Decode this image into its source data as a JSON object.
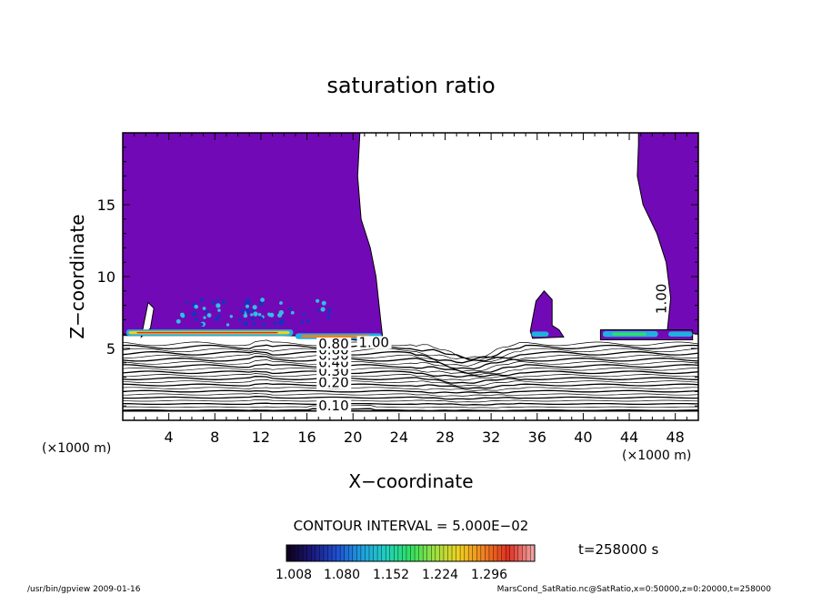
{
  "chart_data": {
    "type": "heatmap",
    "title": "saturation ratio",
    "xlabel": "X−coordinate",
    "ylabel": "Z−coordinate",
    "x_unit_left": "(×1000 m)",
    "x_unit_right": "(×1000 m)",
    "xlim": [
      0,
      50
    ],
    "ylim": [
      0,
      20
    ],
    "x_ticks": [
      4,
      8,
      12,
      16,
      20,
      24,
      28,
      32,
      36,
      40,
      44,
      48
    ],
    "y_ticks": [
      5,
      10,
      15
    ],
    "contour_labels": [
      {
        "text": "0.10",
        "x": 17,
        "y": 0.7
      },
      {
        "text": "0.20",
        "x": 17,
        "y": 2.3
      },
      {
        "text": "0.30",
        "x": 17,
        "y": 3.1
      },
      {
        "text": "0.40",
        "x": 17,
        "y": 3.7
      },
      {
        "text": "0.50",
        "x": 17,
        "y": 4.2
      },
      {
        "text": "0.60",
        "x": 17,
        "y": 4.6
      },
      {
        "text": "0.80",
        "x": 17,
        "y": 5.0
      },
      {
        "text": "1.00",
        "x": 20.5,
        "y": 5.1
      },
      {
        "text": "1.00",
        "x": 47.2,
        "y": 7.4
      }
    ],
    "contour_interval": "CONTOUR INTERVAL = 5.000E−02",
    "colorbar": {
      "ticks": [
        "1.008",
        "1.080",
        "1.152",
        "1.224",
        "1.296"
      ],
      "colors": [
        "#100020",
        "#1a1a80",
        "#1f4fd0",
        "#1fa0e0",
        "#20d0c0",
        "#30e060",
        "#a0e040",
        "#f0d020",
        "#f08020",
        "#e03020",
        "#f0a0a0"
      ]
    },
    "time_label": "t=258000 s",
    "fill_color": "#7209b7"
  },
  "footer": {
    "left": "/usr/bin/gpview   2009-01-16",
    "right": "MarsCond_SatRatio.nc@SatRatio,x=0:50000,z=0:20000,t=258000"
  }
}
